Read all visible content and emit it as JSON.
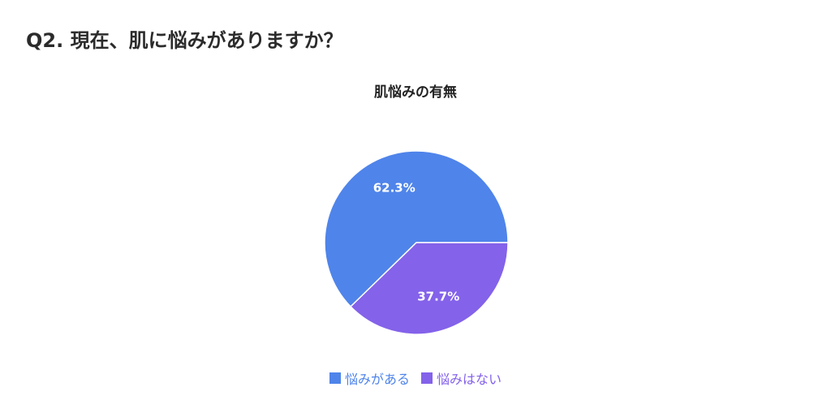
{
  "question": {
    "title": "Q2. 現在、肌に悩みがありますか？"
  },
  "chart_data": {
    "type": "pie",
    "title": "肌悩みの有無",
    "categories": [
      "悩みがある",
      "悩みはない"
    ],
    "values": [
      62.3,
      37.7
    ],
    "data_labels": [
      "62.3%",
      "37.7%"
    ],
    "colors": [
      "#4f84ea",
      "#8462ea"
    ],
    "legend_position": "bottom"
  }
}
